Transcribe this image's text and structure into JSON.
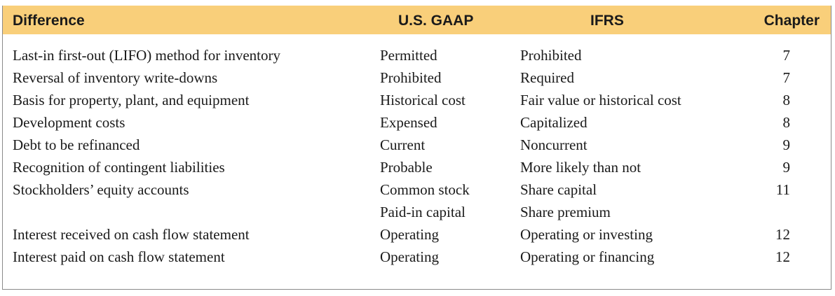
{
  "header": {
    "difference": "Difference",
    "gaap": "U.S. GAAP",
    "ifrs": "IFRS",
    "chapter": "Chapter"
  },
  "rows": [
    {
      "difference": "Last-in first-out (LIFO) method for inventory",
      "gaap": "Permitted",
      "ifrs": "Prohibited",
      "chapter": "7"
    },
    {
      "difference": "Reversal of inventory write-downs",
      "gaap": "Prohibited",
      "ifrs": "Required",
      "chapter": "7"
    },
    {
      "difference": "Basis for property, plant, and equipment",
      "gaap": "Historical cost",
      "ifrs": "Fair value or historical cost",
      "chapter": "8"
    },
    {
      "difference": "Development costs",
      "gaap": "Expensed",
      "ifrs": "Capitalized",
      "chapter": "8"
    },
    {
      "difference": "Debt to be refinanced",
      "gaap": "Current",
      "ifrs": "Noncurrent",
      "chapter": "9"
    },
    {
      "difference": "Recognition of contingent liabilities",
      "gaap": "Probable",
      "ifrs": "More likely than not",
      "chapter": "9"
    },
    {
      "difference": "Stockholders’ equity accounts",
      "gaap": "Common stock",
      "ifrs": "Share capital",
      "chapter": "11"
    },
    {
      "difference": "",
      "gaap": "Paid-in capital",
      "ifrs": "Share premium",
      "chapter": ""
    },
    {
      "difference": "Interest received on cash flow statement",
      "gaap": "Operating",
      "ifrs": "Operating or investing",
      "chapter": "12"
    },
    {
      "difference": "Interest paid on cash flow statement",
      "gaap": "Operating",
      "ifrs": "Operating or financing",
      "chapter": "12"
    }
  ],
  "colors": {
    "header_bg": "#f9cf7a",
    "border": "#8a8a8a",
    "text": "#1a1a1a"
  }
}
